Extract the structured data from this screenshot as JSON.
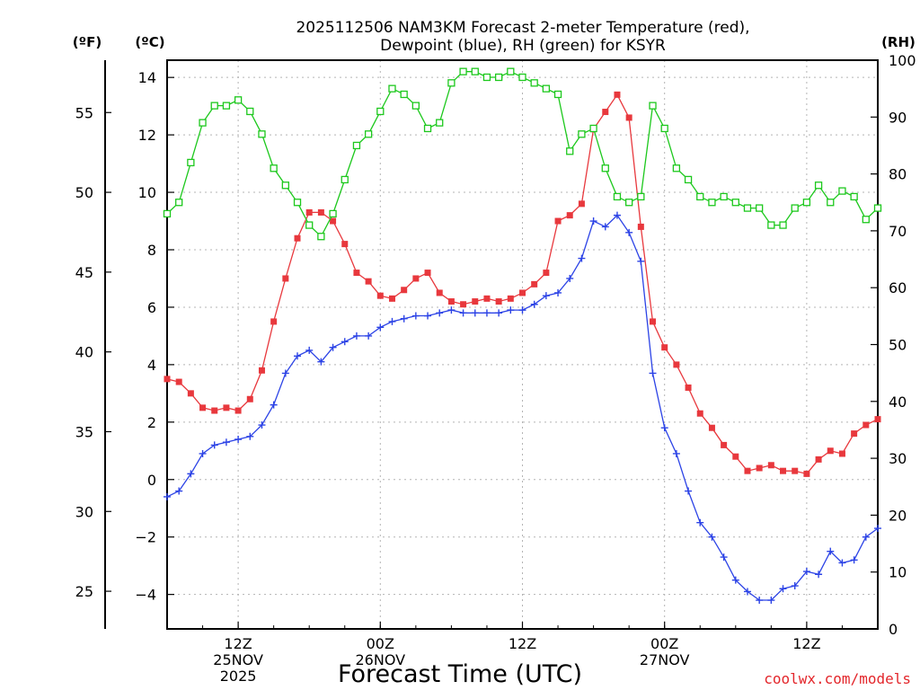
{
  "chart_data": {
    "type": "line",
    "title_line1": "2025112506 NAM3KM Forecast 2-meter Temperature (red),",
    "title_line2": "Dewpoint (blue), RH (green) for KSYR",
    "xlabel": "Forecast Time (UTC)",
    "credit": "coolwx.com/models",
    "units": {
      "f": "(ºF)",
      "c": "(ºC)",
      "rh": "(RH)"
    },
    "x_hours_range": [
      0,
      60
    ],
    "celsius_axis": {
      "ylim": [
        -5.2,
        14.6
      ],
      "ticks": [
        "−4",
        "−2",
        "0",
        "2",
        "4",
        "6",
        "8",
        "10",
        "12",
        "14"
      ],
      "tick_values": [
        -4,
        -2,
        0,
        2,
        4,
        6,
        8,
        10,
        12,
        14
      ]
    },
    "fahrenheit_axis": {
      "ticks": [
        "25",
        "30",
        "35",
        "40",
        "45",
        "50",
        "55"
      ],
      "tick_values": [
        25,
        30,
        35,
        40,
        45,
        50,
        55
      ]
    },
    "rh_axis": {
      "ylim": [
        0,
        100
      ],
      "ticks": [
        "0",
        "10",
        "20",
        "30",
        "40",
        "50",
        "60",
        "70",
        "80",
        "90",
        "100"
      ],
      "tick_values": [
        0,
        10,
        20,
        30,
        40,
        50,
        60,
        70,
        80,
        90,
        100
      ]
    },
    "x_ticks": [
      {
        "hour": 6,
        "lines": [
          "12Z",
          "25NOV",
          "2025"
        ]
      },
      {
        "hour": 18,
        "lines": [
          "00Z",
          "26NOV"
        ]
      },
      {
        "hour": 30,
        "lines": [
          "12Z"
        ]
      },
      {
        "hour": 42,
        "lines": [
          "00Z",
          "27NOV"
        ]
      },
      {
        "hour": 54,
        "lines": [
          "12Z"
        ]
      }
    ],
    "x_hours": [
      0,
      1,
      2,
      3,
      4,
      5,
      6,
      7,
      8,
      9,
      10,
      11,
      12,
      13,
      14,
      15,
      16,
      17,
      18,
      19,
      20,
      21,
      22,
      23,
      24,
      25,
      26,
      27,
      28,
      29,
      30,
      31,
      32,
      33,
      34,
      35,
      36,
      37,
      38,
      39,
      40,
      41,
      42,
      43,
      44,
      45,
      46,
      47,
      48,
      49,
      50,
      51,
      52,
      53,
      54,
      55,
      56,
      57,
      58,
      59,
      60
    ],
    "series": [
      {
        "name": "2-meter Temperature (°C)",
        "color": "#e8383d",
        "marker": "filled-square",
        "values": [
          3.5,
          3.4,
          3.0,
          2.5,
          2.4,
          2.5,
          2.4,
          2.8,
          3.8,
          5.5,
          7.0,
          8.4,
          9.3,
          9.3,
          9.0,
          8.2,
          7.2,
          6.9,
          6.4,
          6.3,
          6.6,
          7.0,
          7.2,
          6.5,
          6.2,
          6.1,
          6.2,
          6.3,
          6.2,
          6.3,
          6.5,
          6.8,
          7.2,
          9.0,
          9.2,
          9.6,
          12.2,
          12.8,
          13.4,
          12.6,
          8.8,
          5.5,
          4.6,
          4.0,
          3.2,
          2.3,
          1.8,
          1.2,
          0.8,
          0.3,
          0.4,
          0.5,
          0.3,
          0.3,
          0.2,
          0.7,
          1.0,
          0.9,
          1.6,
          1.9,
          2.1
        ]
      },
      {
        "name": "Dewpoint (°C)",
        "color": "#2c43e6",
        "marker": "plus",
        "values": [
          -0.6,
          -0.4,
          0.2,
          0.9,
          1.2,
          1.3,
          1.4,
          1.5,
          1.9,
          2.6,
          3.7,
          4.3,
          4.5,
          4.1,
          4.6,
          4.8,
          5.0,
          5.0,
          5.3,
          5.5,
          5.6,
          5.7,
          5.7,
          5.8,
          5.9,
          5.8,
          5.8,
          5.8,
          5.8,
          5.9,
          5.9,
          6.1,
          6.4,
          6.5,
          7.0,
          7.7,
          9.0,
          8.8,
          9.2,
          8.6,
          7.6,
          3.7,
          1.8,
          0.9,
          -0.4,
          -1.5,
          -2.0,
          -2.7,
          -3.5,
          -3.9,
          -4.2,
          -4.2,
          -3.8,
          -3.7,
          -3.2,
          -3.3,
          -2.5,
          -2.9,
          -2.8,
          -2.0,
          -1.7
        ]
      },
      {
        "name": "Relative Humidity (%)",
        "color": "#1cc81c",
        "marker": "open-square",
        "values": [
          73,
          75,
          82,
          89,
          92,
          92,
          93,
          91,
          87,
          81,
          78,
          75,
          71,
          69,
          73,
          79,
          85,
          87,
          91,
          95,
          94,
          92,
          88,
          89,
          96,
          98,
          98,
          97,
          97,
          98,
          97,
          96,
          95,
          94,
          84,
          87,
          88,
          81,
          76,
          75,
          76,
          92,
          88,
          81,
          79,
          76,
          75,
          76,
          75,
          74,
          74,
          71,
          71,
          74,
          75,
          78,
          75,
          77,
          76,
          72,
          74
        ]
      }
    ]
  }
}
